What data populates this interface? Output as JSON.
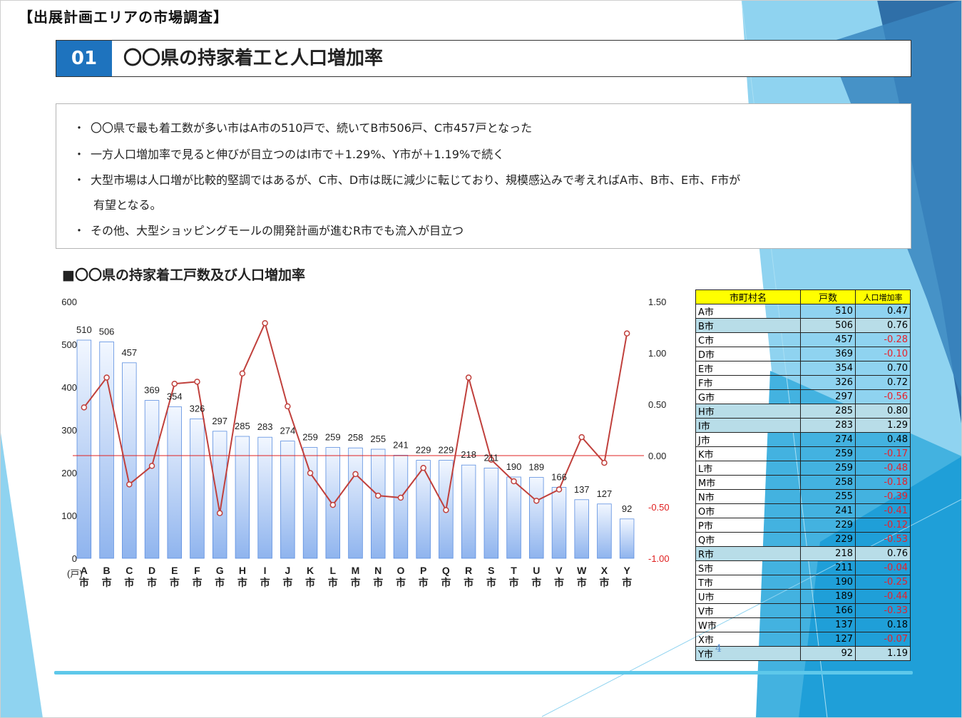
{
  "header": {
    "title": "【出展計画エリアの市場調査】",
    "section_number": "01",
    "section_title": "〇〇県の持家着工と人口増加率"
  },
  "bullets": [
    "〇〇県で最も着工数が多い市はA市の510戸で、続いてB市506戸、C市457戸となった",
    "一方人口増加率で見ると伸びが目立つのはI市で＋1.29%、Y市が＋1.19%で続く",
    "大型市場は人口増が比較的堅調ではあるが、C市、D市は既に減少に転じており、規模感込みで考えればA市、B市、E市、F市が",
    "有望となる。",
    "その他、大型ショッピングモールの開発計画が進むR市でも流入が目立つ"
  ],
  "bullet_mark": "・",
  "chart_data": {
    "type": "bar",
    "title": "■〇〇県の持家着工戸数及び人口増加率",
    "categories": [
      "A市",
      "B市",
      "C市",
      "D市",
      "E市",
      "F市",
      "G市",
      "H市",
      "I市",
      "J市",
      "K市",
      "L市",
      "M市",
      "N市",
      "O市",
      "P市",
      "Q市",
      "R市",
      "S市",
      "T市",
      "U市",
      "V市",
      "W市",
      "X市",
      "Y市"
    ],
    "y_left_unit": "(戸)",
    "ylim_left": [
      0,
      600
    ],
    "y_left_ticks": [
      0,
      100,
      200,
      300,
      400,
      500,
      600
    ],
    "ylim_right": [
      -1.0,
      1.5
    ],
    "y_right_ticks": [
      "-1.00",
      "-0.50",
      "0.00",
      "0.50",
      "1.00",
      "1.50"
    ],
    "series": [
      {
        "type": "bar",
        "axis": "left",
        "values": [
          510,
          506,
          457,
          369,
          354,
          326,
          297,
          285,
          283,
          274,
          259,
          259,
          258,
          255,
          241,
          229,
          229,
          218,
          211,
          190,
          189,
          166,
          137,
          127,
          92
        ]
      },
      {
        "type": "line",
        "axis": "right",
        "values": [
          0.47,
          0.76,
          -0.28,
          -0.1,
          0.7,
          0.72,
          -0.56,
          0.8,
          1.29,
          0.48,
          -0.17,
          -0.48,
          -0.18,
          -0.39,
          -0.41,
          -0.12,
          -0.53,
          0.76,
          -0.04,
          -0.25,
          -0.44,
          -0.33,
          0.18,
          -0.07,
          1.19
        ]
      }
    ],
    "colors": {
      "bar": "#8fb4ee",
      "bar_border": "#5b8ee0",
      "line": "#c0403c",
      "zero_line": "#e02020"
    }
  },
  "table": {
    "headers": [
      "市町村名",
      "戸数",
      "人口増加率"
    ],
    "rows": [
      {
        "name": "A市",
        "count": "510",
        "rate": "0.47"
      },
      {
        "name": "B市",
        "count": "506",
        "rate": "0.76"
      },
      {
        "name": "C市",
        "count": "457",
        "rate": "-0.28"
      },
      {
        "name": "D市",
        "count": "369",
        "rate": "-0.10"
      },
      {
        "name": "E市",
        "count": "354",
        "rate": "0.70"
      },
      {
        "name": "F市",
        "count": "326",
        "rate": "0.72"
      },
      {
        "name": "G市",
        "count": "297",
        "rate": "-0.56"
      },
      {
        "name": "H市",
        "count": "285",
        "rate": "0.80"
      },
      {
        "name": "I市",
        "count": "283",
        "rate": "1.29"
      },
      {
        "name": "J市",
        "count": "274",
        "rate": "0.48"
      },
      {
        "name": "K市",
        "count": "259",
        "rate": "-0.17"
      },
      {
        "name": "L市",
        "count": "259",
        "rate": "-0.48"
      },
      {
        "name": "M市",
        "count": "258",
        "rate": "-0.18"
      },
      {
        "name": "N市",
        "count": "255",
        "rate": "-0.39"
      },
      {
        "name": "O市",
        "count": "241",
        "rate": "-0.41"
      },
      {
        "name": "P市",
        "count": "229",
        "rate": "-0.12"
      },
      {
        "name": "Q市",
        "count": "229",
        "rate": "-0.53"
      },
      {
        "name": "R市",
        "count": "218",
        "rate": "0.76"
      },
      {
        "name": "S市",
        "count": "211",
        "rate": "-0.04"
      },
      {
        "name": "T市",
        "count": "190",
        "rate": "-0.25"
      },
      {
        "name": "U市",
        "count": "189",
        "rate": "-0.44"
      },
      {
        "name": "V市",
        "count": "166",
        "rate": "-0.33"
      },
      {
        "name": "W市",
        "count": "137",
        "rate": "0.18"
      },
      {
        "name": "X市",
        "count": "127",
        "rate": "-0.07"
      },
      {
        "name": "Y市",
        "count": "92",
        "rate": "1.19"
      }
    ],
    "highlighted": [
      "B市",
      "H市",
      "I市",
      "R市",
      "Y市"
    ],
    "colors": {
      "header_bg": "#ffff00",
      "highlight_bg": "#b8dde8",
      "negative_text": "#e8202a"
    }
  },
  "page_number": "4"
}
